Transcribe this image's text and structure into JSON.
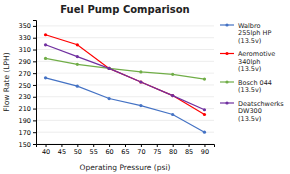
{
  "chart_data": {
    "type": "line",
    "title": "Fuel Pump Comparison",
    "x_label": "Operating Pressure (psi)",
    "y_label": "Flow Rate (LPH)",
    "x": [
      40,
      50,
      60,
      70,
      80,
      90
    ],
    "series": [
      {
        "name": "Walbro\n255lph HP\n(13.5v)",
        "color": "#4472C4",
        "values": [
          262,
          248,
          227,
          215,
          200,
          170
        ]
      },
      {
        "name": "Aeromotive\n340lph\n(13.5v)",
        "color": "#FF0000",
        "values": [
          335,
          318,
          278,
          255,
          232,
          200
        ]
      },
      {
        "name": "Bosch 044\n(13.5v)",
        "color": "#70AD47",
        "values": [
          295,
          285,
          278,
          272,
          268,
          260
        ]
      },
      {
        "name": "Deatschwerks\nDW300\n(13.5v)",
        "color": "#7030A0",
        "values": [
          318,
          298,
          278,
          255,
          232,
          208
        ]
      }
    ],
    "xlim": [
      37,
      93
    ],
    "ylim": [
      150,
      360
    ],
    "xticks": [
      40,
      45,
      50,
      55,
      60,
      65,
      70,
      75,
      80,
      85,
      90
    ],
    "yticks": [
      150,
      170,
      190,
      210,
      230,
      250,
      270,
      290,
      310,
      330,
      350
    ],
    "grid": "y",
    "legend": "right",
    "marker": "circle"
  }
}
